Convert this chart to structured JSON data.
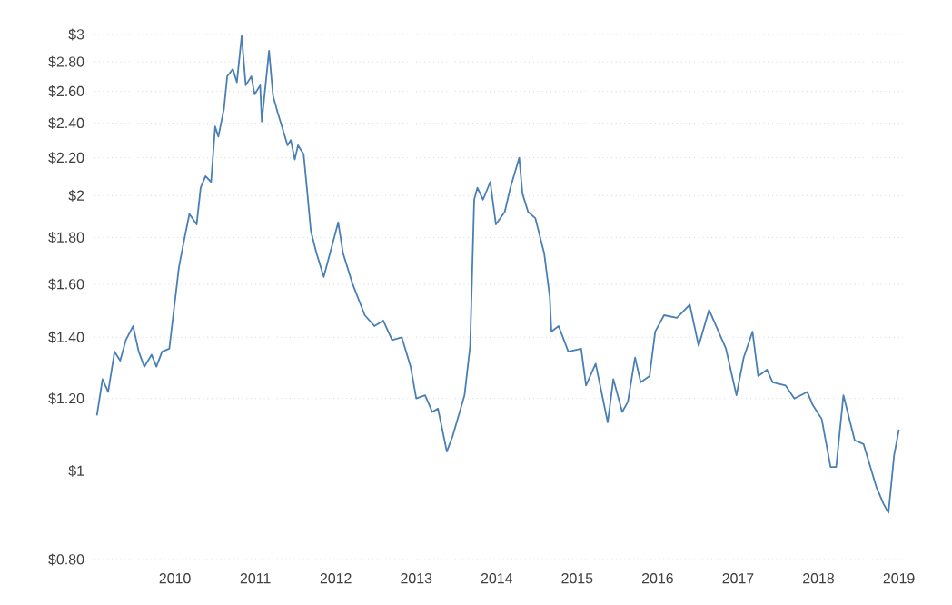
{
  "chart_data": {
    "type": "line",
    "log": "y",
    "grid": "y",
    "marker": "none",
    "line_style": "solid",
    "xlim": [
      2009,
      2019.05
    ],
    "xticks": [
      2010,
      2011,
      2012,
      2013,
      2014,
      2015,
      2016,
      2017,
      2018,
      2019
    ],
    "ylim": [
      0.8,
      3
    ],
    "yticks": [
      {
        "value": 0.8,
        "label": "$0.80"
      },
      {
        "value": 1,
        "label": "$1"
      },
      {
        "value": 1.2,
        "label": "$1.20"
      },
      {
        "value": 1.4,
        "label": "$1.40"
      },
      {
        "value": 1.6,
        "label": "$1.60"
      },
      {
        "value": 1.8,
        "label": "$1.80"
      },
      {
        "value": 2,
        "label": "$2"
      },
      {
        "value": 2.2,
        "label": "$2.20"
      },
      {
        "value": 2.4,
        "label": "$2.40"
      },
      {
        "value": 2.6,
        "label": "$2.60"
      },
      {
        "value": 2.8,
        "label": "$2.80"
      },
      {
        "value": 3,
        "label": "$3"
      }
    ],
    "x": [
      2009.03,
      2009.1,
      2009.17,
      2009.25,
      2009.32,
      2009.39,
      2009.48,
      2009.55,
      2009.62,
      2009.71,
      2009.77,
      2009.84,
      2009.93,
      2010.05,
      2010.11,
      2010.18,
      2010.27,
      2010.32,
      2010.38,
      2010.45,
      2010.5,
      2010.54,
      2010.61,
      2010.65,
      2010.72,
      2010.77,
      2010.83,
      2010.88,
      2010.95,
      2010.99,
      2011.06,
      2011.08,
      2011.17,
      2011.22,
      2011.28,
      2011.33,
      2011.4,
      2011.44,
      2011.49,
      2011.53,
      2011.6,
      2011.64,
      2011.69,
      2011.76,
      2011.85,
      2012.03,
      2012.09,
      2012.21,
      2012.36,
      2012.48,
      2012.59,
      2012.7,
      2012.82,
      2012.93,
      2013.0,
      2013.11,
      2013.2,
      2013.27,
      2013.38,
      2013.45,
      2013.54,
      2013.6,
      2013.67,
      2013.72,
      2013.76,
      2013.83,
      2013.92,
      2013.99,
      2014.1,
      2014.17,
      2014.28,
      2014.32,
      2014.39,
      2014.48,
      2014.59,
      2014.66,
      2014.68,
      2014.77,
      2014.89,
      2015.05,
      2015.11,
      2015.23,
      2015.38,
      2015.45,
      2015.56,
      2015.63,
      2015.72,
      2015.79,
      2015.9,
      2015.97,
      2016.08,
      2016.24,
      2016.4,
      2016.51,
      2016.64,
      2016.85,
      2016.98,
      2017.07,
      2017.18,
      2017.25,
      2017.36,
      2017.43,
      2017.59,
      2017.7,
      2017.86,
      2017.93,
      2018.04,
      2018.15,
      2018.22,
      2018.31,
      2018.45,
      2018.56,
      2018.72,
      2018.81,
      2018.87,
      2018.94,
      2019.0
    ],
    "series": [
      {
        "color": "#4a7fb5",
        "values": [
          1.15,
          1.26,
          1.22,
          1.35,
          1.32,
          1.39,
          1.44,
          1.35,
          1.3,
          1.34,
          1.3,
          1.35,
          1.36,
          1.67,
          1.78,
          1.91,
          1.86,
          2.04,
          2.1,
          2.07,
          2.38,
          2.32,
          2.49,
          2.7,
          2.75,
          2.66,
          2.99,
          2.64,
          2.7,
          2.58,
          2.64,
          2.41,
          2.88,
          2.57,
          2.46,
          2.38,
          2.27,
          2.3,
          2.19,
          2.27,
          2.22,
          2.04,
          1.83,
          1.73,
          1.63,
          1.87,
          1.73,
          1.6,
          1.48,
          1.44,
          1.46,
          1.39,
          1.4,
          1.3,
          1.2,
          1.21,
          1.16,
          1.17,
          1.05,
          1.09,
          1.16,
          1.21,
          1.37,
          1.98,
          2.04,
          1.98,
          2.07,
          1.86,
          1.92,
          2.04,
          2.2,
          2.01,
          1.92,
          1.89,
          1.73,
          1.55,
          1.42,
          1.44,
          1.35,
          1.36,
          1.24,
          1.31,
          1.13,
          1.26,
          1.16,
          1.19,
          1.33,
          1.25,
          1.27,
          1.42,
          1.48,
          1.47,
          1.52,
          1.37,
          1.5,
          1.36,
          1.21,
          1.33,
          1.42,
          1.27,
          1.29,
          1.25,
          1.24,
          1.2,
          1.22,
          1.18,
          1.14,
          1.01,
          1.01,
          1.21,
          1.08,
          1.07,
          0.96,
          0.92,
          0.9,
          1.04,
          1.11
        ]
      }
    ]
  }
}
